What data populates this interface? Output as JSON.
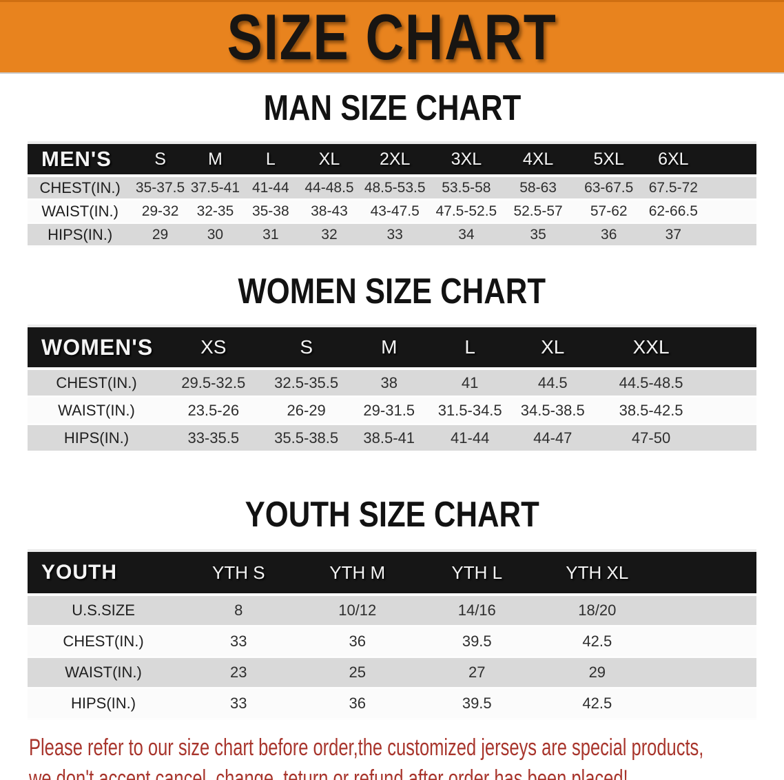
{
  "banner": {
    "title": "SIZE CHART",
    "bg_color": "#e8831e",
    "text_color": "#181512"
  },
  "sections": [
    {
      "heading": "MAN SIZE CHART",
      "table": {
        "corner": "MEN'S",
        "columns": [
          "S",
          "M",
          "L",
          "XL",
          "2XL",
          "3XL",
          "4XL",
          "5XL",
          "6XL"
        ],
        "rows": [
          {
            "label": "CHEST(IN.)",
            "values": [
              "35-37.5",
              "37.5-41",
              "41-44",
              "44-48.5",
              "48.5-53.5",
              "53.5-58",
              "58-63",
              "63-67.5",
              "67.5-72"
            ]
          },
          {
            "label": "WAIST(IN.)",
            "values": [
              "29-32",
              "32-35",
              "35-38",
              "38-43",
              "43-47.5",
              "47.5-52.5",
              "52.5-57",
              "57-62",
              "62-66.5"
            ]
          },
          {
            "label": "HIPS(IN.)",
            "values": [
              "29",
              "30",
              "31",
              "32",
              "33",
              "34",
              "35",
              "36",
              "37"
            ]
          }
        ]
      }
    },
    {
      "heading": "WOMEN SIZE CHART",
      "table": {
        "corner": "WOMEN'S",
        "columns": [
          "XS",
          "S",
          "M",
          "L",
          "XL",
          "XXL"
        ],
        "rows": [
          {
            "label": "CHEST(IN.)",
            "values": [
              "29.5-32.5",
              "32.5-35.5",
              "38",
              "41",
              "44.5",
              "44.5-48.5"
            ]
          },
          {
            "label": "WAIST(IN.)",
            "values": [
              "23.5-26",
              "26-29",
              "29-31.5",
              "31.5-34.5",
              "34.5-38.5",
              "38.5-42.5"
            ]
          },
          {
            "label": "HIPS(IN.)",
            "values": [
              "33-35.5",
              "35.5-38.5",
              "38.5-41",
              "41-44",
              "44-47",
              "47-50"
            ]
          }
        ]
      }
    },
    {
      "heading": "YOUTH SIZE CHART",
      "table": {
        "corner": "YOUTH",
        "columns": [
          "YTH S",
          "YTH M",
          "YTH L",
          "YTH XL"
        ],
        "rows": [
          {
            "label": "U.S.SIZE",
            "values": [
              "8",
              "10/12",
              "14/16",
              "18/20"
            ]
          },
          {
            "label": "CHEST(IN.)",
            "values": [
              "33",
              "36",
              "39.5",
              "42.5"
            ]
          },
          {
            "label": "WAIST(IN.)",
            "values": [
              "23",
              "25",
              "27",
              "29"
            ]
          },
          {
            "label": "HIPS(IN.)",
            "values": [
              "33",
              "36",
              "39.5",
              "42.5"
            ]
          }
        ]
      }
    }
  ],
  "note": {
    "color": "#a8352c",
    "lines": [
      "Please refer to our size chart before order,the customized jerseys are special products,",
      "we don't accept cancel, change, teturn or refund after order has been placed!"
    ]
  },
  "row_stripe_colors": {
    "odd": "#d9d9d9",
    "even": "#fbfbfb",
    "header_bg": "#161616"
  }
}
